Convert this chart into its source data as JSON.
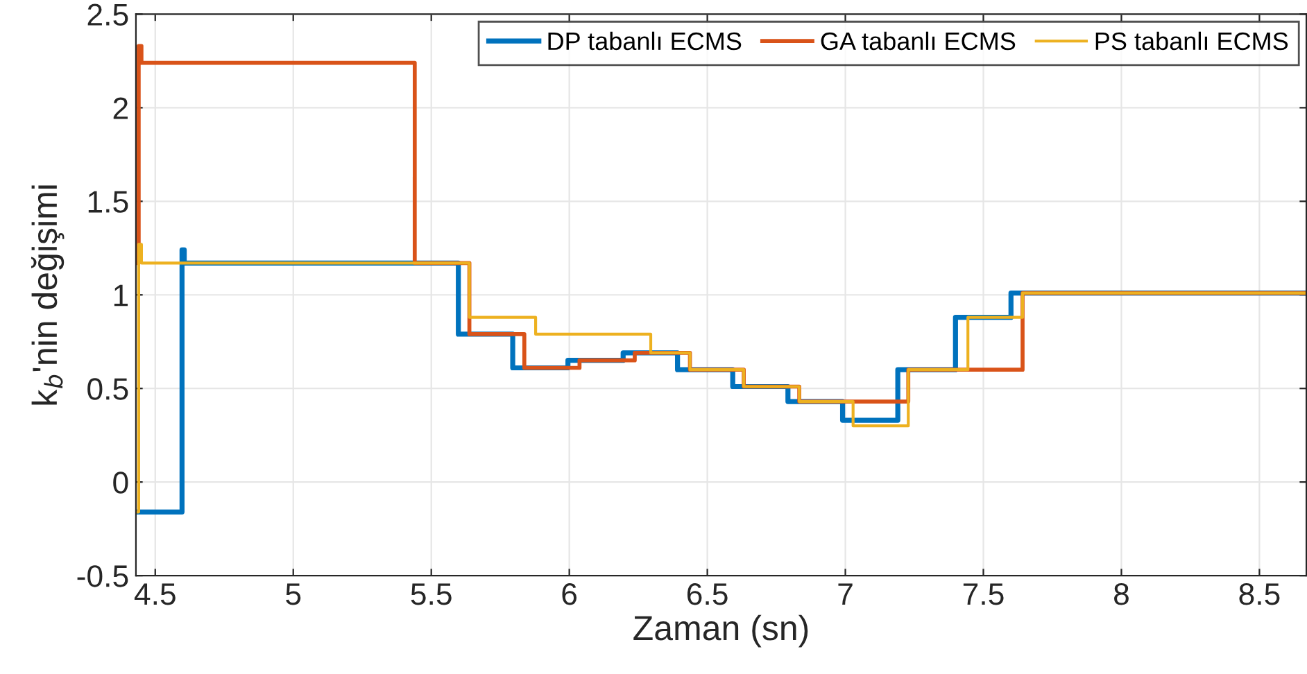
{
  "chart_data": {
    "type": "step",
    "xlabel": "Zaman (sn)",
    "ylabel": "k$_{b}$'nin değişimi",
    "xlim": [
      4.43,
      8.67
    ],
    "xticks": [
      4.5,
      5,
      5.5,
      6,
      6.5,
      7,
      7.5,
      8,
      8.5
    ],
    "ylim": [
      -0.5,
      2.5
    ],
    "yticks": [
      -0.5,
      0,
      0.5,
      1,
      1.5,
      2,
      2.5
    ],
    "grid": true,
    "legend": "top right",
    "line_style": "solid",
    "marker": "none",
    "series": [
      {
        "name": "DP tabanlı ECMS",
        "color": "#0072bd",
        "x": [
          4.43,
          4.597,
          4.605,
          5.598,
          5.795,
          5.995,
          6.195,
          6.392,
          6.592,
          6.792,
          6.99,
          7.19,
          7.399,
          7.6,
          8.67
        ],
        "values": [
          -0.16,
          1.24,
          1.17,
          0.79,
          0.61,
          0.65,
          0.69,
          0.6,
          0.51,
          0.43,
          0.33,
          0.6,
          0.88,
          1.01,
          1.01
        ]
      },
      {
        "name": "GA tabanlı ECMS",
        "color": "#d95319",
        "x": [
          4.43,
          4.44,
          4.45,
          5.44,
          5.638,
          5.837,
          6.037,
          6.237,
          6.437,
          6.632,
          6.833,
          7.228,
          7.642,
          8.67
        ],
        "values": [
          1.17,
          2.33,
          2.24,
          1.17,
          0.79,
          0.61,
          0.65,
          0.69,
          0.6,
          0.51,
          0.43,
          0.6,
          1.01,
          1.01
        ]
      },
      {
        "name": "PS tabanlı ECMS",
        "color": "#edb120",
        "x": [
          4.43,
          4.44,
          4.45,
          5.638,
          5.878,
          6.295,
          6.437,
          6.632,
          6.833,
          7.028,
          7.228,
          7.444,
          7.642,
          8.67
        ],
        "values": [
          -0.16,
          1.27,
          1.17,
          0.88,
          0.79,
          0.69,
          0.6,
          0.51,
          0.43,
          0.3,
          0.6,
          0.88,
          1.01,
          1.01
        ]
      }
    ]
  }
}
